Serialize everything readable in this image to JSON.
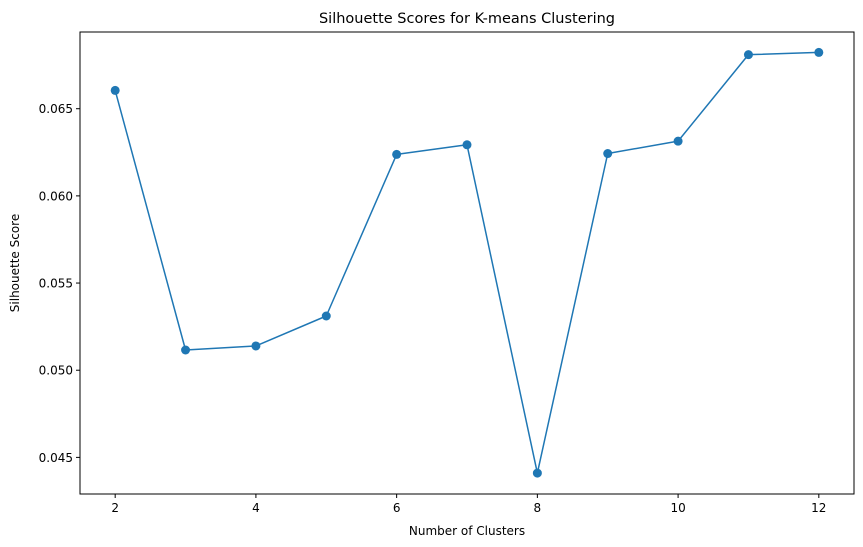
{
  "chart_data": {
    "type": "line",
    "title": "Silhouette Scores for K-means Clustering",
    "xlabel": "Number of Clusters",
    "ylabel": "Silhouette Score",
    "x": [
      2,
      3,
      4,
      5,
      6,
      7,
      8,
      9,
      10,
      11,
      12
    ],
    "series": [
      {
        "values": [
          0.06605,
          0.05116,
          0.05139,
          0.05311,
          0.06238,
          0.06293,
          0.0441,
          0.06243,
          0.06314,
          0.0681,
          0.06823
        ]
      }
    ],
    "xticks": [
      2,
      4,
      6,
      8,
      10,
      12
    ],
    "xtick_labels": [
      "2",
      "4",
      "6",
      "8",
      "10",
      "12"
    ],
    "yticks": [
      0.045,
      0.05,
      0.055,
      0.06,
      0.065
    ],
    "ytick_labels": [
      "0.045",
      "0.050",
      "0.055",
      "0.060",
      "0.065"
    ],
    "xlim": [
      1.5,
      12.5
    ],
    "ylim": [
      0.0429,
      0.0694
    ],
    "grid": false,
    "marker": "circle",
    "color": "#1f77b4"
  }
}
